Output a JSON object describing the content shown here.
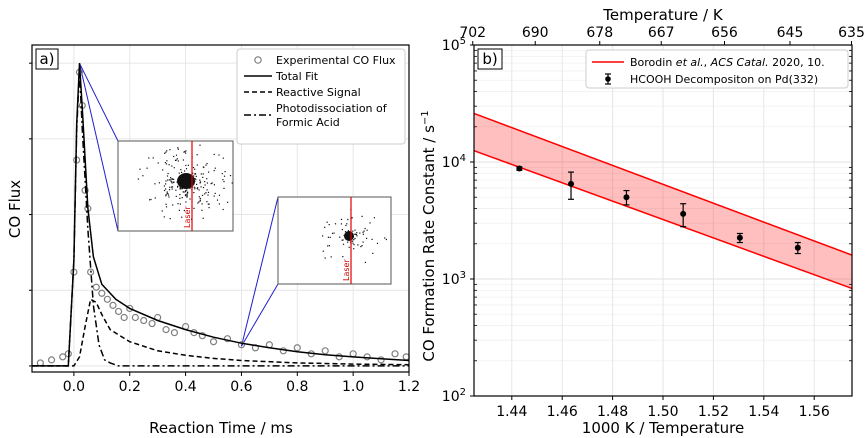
{
  "chart_data": [
    {
      "type": "scatter",
      "panel_label": "a)",
      "xlabel": "Reaction Time / ms",
      "ylabel": "CO Flux",
      "xlim": [
        -0.15,
        1.2
      ],
      "ylim": [
        -0.02,
        1.06
      ],
      "x_ticks": [
        "0.0",
        "0.2",
        "0.4",
        "0.6",
        "0.8",
        "1.0",
        "1.2"
      ],
      "legend_position": "top-right",
      "inset_label": "Laser",
      "series": [
        {
          "name": "Experimental CO Flux",
          "style": "open-circle",
          "color": "#7f7f7f",
          "x": [
            -0.12,
            -0.08,
            -0.04,
            -0.02,
            0.0,
            0.01,
            0.02,
            0.03,
            0.04,
            0.05,
            0.06,
            0.08,
            0.1,
            0.12,
            0.14,
            0.16,
            0.18,
            0.2,
            0.22,
            0.25,
            0.28,
            0.3,
            0.33,
            0.36,
            0.4,
            0.43,
            0.46,
            0.5,
            0.55,
            0.6,
            0.65,
            0.7,
            0.75,
            0.8,
            0.85,
            0.9,
            0.95,
            1.0,
            1.05,
            1.1,
            1.15,
            1.19
          ],
          "y": [
            0.01,
            0.02,
            0.03,
            0.04,
            0.31,
            0.68,
            0.97,
            0.86,
            0.58,
            0.52,
            0.31,
            0.26,
            0.24,
            0.22,
            0.2,
            0.18,
            0.16,
            0.19,
            0.16,
            0.15,
            0.14,
            0.16,
            0.12,
            0.11,
            0.13,
            0.11,
            0.1,
            0.08,
            0.09,
            0.07,
            0.06,
            0.07,
            0.05,
            0.06,
            0.04,
            0.05,
            0.03,
            0.04,
            0.03,
            0.02,
            0.04,
            0.03
          ]
        },
        {
          "name": "Total Fit",
          "style": "solid",
          "x": [
            -0.15,
            -0.02,
            0.0,
            0.01,
            0.02,
            0.03,
            0.05,
            0.07,
            0.1,
            0.15,
            0.2,
            0.3,
            0.4,
            0.5,
            0.6,
            0.7,
            0.8,
            0.9,
            1.0,
            1.1,
            1.2
          ],
          "y": [
            0.0,
            0.0,
            0.35,
            0.8,
            1.0,
            0.85,
            0.52,
            0.36,
            0.27,
            0.22,
            0.19,
            0.15,
            0.12,
            0.095,
            0.075,
            0.06,
            0.047,
            0.037,
            0.03,
            0.024,
            0.018
          ]
        },
        {
          "name": "Reactive Signal",
          "style": "dashed",
          "x": [
            -0.15,
            0.0,
            0.02,
            0.04,
            0.06,
            0.08,
            0.1,
            0.13,
            0.2,
            0.3,
            0.4,
            0.5,
            0.6,
            0.8,
            1.0,
            1.2
          ],
          "y": [
            0.0,
            0.0,
            0.03,
            0.13,
            0.22,
            0.21,
            0.17,
            0.12,
            0.08,
            0.05,
            0.035,
            0.025,
            0.018,
            0.01,
            0.006,
            0.004
          ]
        },
        {
          "name": "Photodissociation of Formic Acid",
          "style": "dashdot",
          "x": [
            -0.15,
            -0.02,
            0.0,
            0.01,
            0.02,
            0.03,
            0.05,
            0.07,
            0.09,
            0.11,
            0.13,
            0.16,
            0.2,
            0.4,
            0.8,
            1.2
          ],
          "y": [
            0.0,
            0.0,
            0.35,
            0.78,
            0.98,
            0.78,
            0.45,
            0.2,
            0.07,
            0.02,
            0.01,
            0.0,
            0.0,
            0.0,
            0.0,
            0.0
          ]
        }
      ]
    },
    {
      "type": "scatter",
      "panel_label": "b)",
      "xlabel": "1000 K / Temperature",
      "ylabel": "CO Formation Rate Constant / s",
      "ylabel_sup": "−1",
      "top_xlabel": "Temperature / K",
      "xlim": [
        1.425,
        1.575
      ],
      "ylim": [
        100,
        100000
      ],
      "yscale": "log",
      "x_ticks": [
        1.44,
        1.46,
        1.48,
        1.5,
        1.52,
        1.54,
        1.56
      ],
      "x_tick_labels": [
        "1.44",
        "1.46",
        "1.48",
        "1.50",
        "1.52",
        "1.54",
        "1.56"
      ],
      "top_ticks": [
        {
          "label": "702",
          "x": 1.4245
        },
        {
          "label": "690",
          "x": 1.4493
        },
        {
          "label": "678",
          "x": 1.4749
        },
        {
          "label": "667",
          "x": 1.4993
        },
        {
          "label": "656",
          "x": 1.5244
        },
        {
          "label": "645",
          "x": 1.5504
        },
        {
          "label": "635",
          "x": 1.5748
        }
      ],
      "y_ticks": [
        {
          "base": "10",
          "exp": "2",
          "value": 100
        },
        {
          "base": "10",
          "exp": "3",
          "value": 1000
        },
        {
          "base": "10",
          "exp": "4",
          "value": 10000
        },
        {
          "base": "10",
          "exp": "5",
          "value": 100000
        }
      ],
      "legend_position": "top-right",
      "band": {
        "name_prefix": "Borodin ",
        "name_etal": "et al.",
        "name_mid": ", ",
        "name_journal": "ACS Catal.",
        "name_suffix": " 2020, 10.",
        "color": "#ff0000",
        "x": [
          1.425,
          1.575
        ],
        "upper": [
          26000,
          1600
        ],
        "lower": [
          12500,
          830
        ]
      },
      "series": [
        {
          "name": "HCOOH Decompositon on Pd(332)",
          "x": [
            1.443,
            1.4635,
            1.4855,
            1.508,
            1.5305,
            1.5535
          ],
          "y": [
            8800,
            6500,
            5000,
            3600,
            2250,
            1850
          ],
          "yerr_low": [
            8500,
            4800,
            4300,
            2800,
            2050,
            1650
          ],
          "yerr_high": [
            9100,
            8200,
            5700,
            4400,
            2450,
            2050
          ]
        }
      ]
    }
  ]
}
